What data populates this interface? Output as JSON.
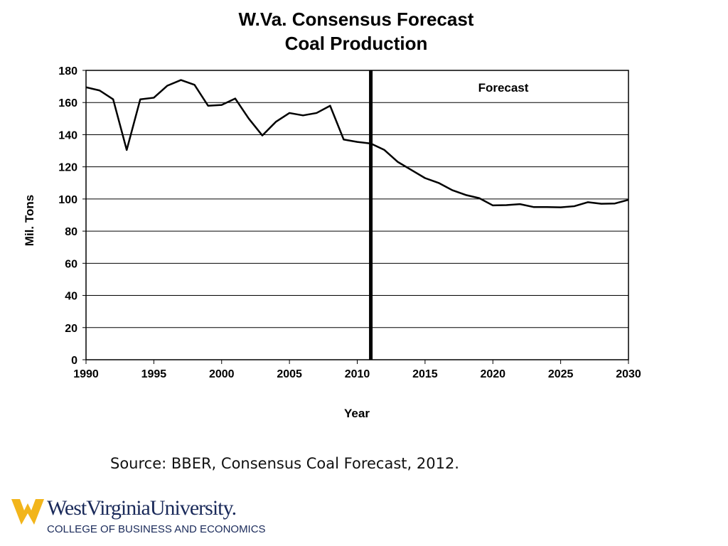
{
  "chart_data": {
    "type": "line",
    "title": "W.Va. Consensus Forecast",
    "subtitle": "Coal Production",
    "xlabel": "Year",
    "ylabel": "Mil. Tons",
    "xlim": [
      1990,
      2030
    ],
    "ylim": [
      0,
      180
    ],
    "xticks": [
      1990,
      1995,
      2000,
      2005,
      2010,
      2015,
      2020,
      2025,
      2030
    ],
    "yticks": [
      0,
      20,
      40,
      60,
      80,
      100,
      120,
      140,
      160,
      180
    ],
    "grid": "horizontal",
    "annotation": "Forecast",
    "forecast_start": 2011,
    "x": [
      1990,
      1991,
      1992,
      1993,
      1994,
      1995,
      1996,
      1997,
      1998,
      1999,
      2000,
      2001,
      2002,
      2003,
      2004,
      2005,
      2006,
      2007,
      2008,
      2009,
      2010,
      2011,
      2012,
      2013,
      2014,
      2015,
      2016,
      2017,
      2018,
      2019,
      2020,
      2021,
      2022,
      2023,
      2024,
      2025,
      2026,
      2027,
      2028,
      2029,
      2030
    ],
    "y": [
      169.5,
      167.5,
      162,
      130.5,
      162,
      163,
      170.5,
      174,
      171,
      158,
      158.5,
      162.5,
      150,
      139.5,
      148,
      153.5,
      152,
      153.5,
      158,
      137,
      135.5,
      134.5,
      130.5,
      123,
      118,
      113,
      110,
      105.5,
      102.5,
      100.5,
      96,
      96.2,
      96.8,
      95,
      95,
      94.8,
      95.5,
      98,
      97,
      97.2,
      99.5
    ],
    "color": "#000000"
  },
  "source": "Source: BBER, Consensus Coal Forecast, 2012.",
  "logo": {
    "name": "WestVirginiaUniversity.",
    "sub": "COLLEGE OF BUSINESS AND ECONOMICS",
    "gold": "#f2b51b",
    "blue": "#1a2a5a"
  }
}
